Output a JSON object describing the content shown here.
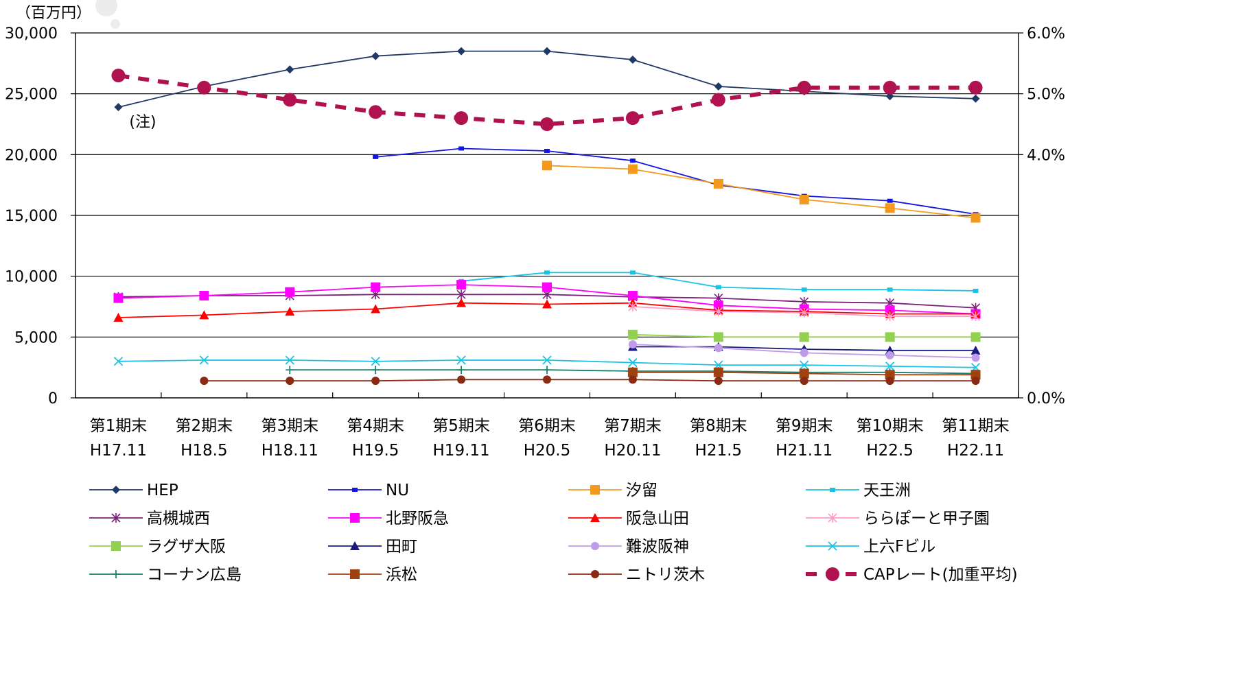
{
  "chart_data": {
    "type": "line",
    "unit_label": "（百万円）",
    "categories": [
      [
        "第1期末",
        "H17.11"
      ],
      [
        "第2期末",
        "H18.5"
      ],
      [
        "第3期末",
        "H18.11"
      ],
      [
        "第4期末",
        "H19.5"
      ],
      [
        "第5期末",
        "H19.11"
      ],
      [
        "第6期末",
        "H20.5"
      ],
      [
        "第7期末",
        "H20.11"
      ],
      [
        "第8期末",
        "H21.5"
      ],
      [
        "第9期末",
        "H21.11"
      ],
      [
        "第10期末",
        "H22.5"
      ],
      [
        "第11期末",
        "H22.11"
      ]
    ],
    "y_left": {
      "min": 0,
      "max": 30000,
      "ticks": [
        0,
        5000,
        10000,
        15000,
        20000,
        25000,
        30000
      ],
      "tick_labels": [
        "0",
        "5,000",
        "10,000",
        "15,000",
        "20,000",
        "25,000",
        "30,000"
      ]
    },
    "y_right": {
      "min": 0,
      "max": 6.0,
      "ticks": [
        0,
        4.0,
        5.0,
        6.0
      ],
      "tick_labels": [
        "0.0%",
        "4.0%",
        "5.0%",
        "6.0%"
      ]
    },
    "grid": true,
    "legend_position": "bottom",
    "annotation": "(注)",
    "series": [
      {
        "name": "HEP",
        "axis": "left",
        "color": "#1F3864",
        "marker": "diamond",
        "dashed": false,
        "values": [
          23900,
          25600,
          27000,
          28100,
          28500,
          28500,
          27800,
          25600,
          25200,
          24800,
          24600
        ]
      },
      {
        "name": "NU",
        "axis": "left",
        "color": "#1515E0",
        "marker": "smallsquare",
        "dashed": false,
        "values": [
          null,
          null,
          null,
          19800,
          20500,
          20300,
          19500,
          17500,
          16600,
          16200,
          15100
        ]
      },
      {
        "name": "汐留",
        "axis": "left",
        "color": "#F39A1E",
        "marker": "square",
        "dashed": false,
        "values": [
          null,
          null,
          null,
          null,
          null,
          19100,
          18800,
          17600,
          16300,
          15600,
          14800
        ]
      },
      {
        "name": "天王洲",
        "axis": "left",
        "color": "#19C3E6",
        "marker": "smallsquare",
        "dashed": false,
        "values": [
          null,
          null,
          null,
          null,
          9600,
          10300,
          10300,
          9100,
          8900,
          8900,
          8800
        ]
      },
      {
        "name": "高槻城西",
        "axis": "left",
        "color": "#7B1F7B",
        "marker": "star",
        "dashed": false,
        "values": [
          8300,
          8400,
          8400,
          8500,
          8500,
          8500,
          8300,
          8200,
          7900,
          7800,
          7400
        ]
      },
      {
        "name": "北野阪急",
        "axis": "left",
        "color": "#FF00FF",
        "marker": "square",
        "dashed": false,
        "values": [
          8200,
          8400,
          8700,
          9100,
          9300,
          9100,
          8400,
          7600,
          7300,
          7200,
          6900
        ]
      },
      {
        "name": "阪急山田",
        "axis": "left",
        "color": "#FF0000",
        "marker": "triangle",
        "dashed": false,
        "values": [
          6600,
          6800,
          7100,
          7300,
          7800,
          7700,
          7800,
          7200,
          7100,
          6900,
          6900
        ]
      },
      {
        "name": "ららぽーと甲子園",
        "axis": "left",
        "color": "#FF9BC8",
        "marker": "star",
        "dashed": false,
        "values": [
          null,
          null,
          null,
          null,
          null,
          null,
          7500,
          7100,
          7000,
          6700,
          6700
        ]
      },
      {
        "name": "ラグザ大阪",
        "axis": "left",
        "color": "#92D050",
        "marker": "square",
        "dashed": false,
        "values": [
          null,
          null,
          null,
          null,
          null,
          null,
          5200,
          5000,
          5000,
          5000,
          5000
        ]
      },
      {
        "name": "田町",
        "axis": "left",
        "color": "#1A1A80",
        "marker": "triangle",
        "dashed": false,
        "values": [
          null,
          null,
          null,
          null,
          null,
          null,
          4200,
          4200,
          4000,
          3900,
          3900
        ]
      },
      {
        "name": "難波阪神",
        "axis": "left",
        "color": "#C09BEA",
        "marker": "circle",
        "dashed": false,
        "values": [
          null,
          null,
          null,
          null,
          null,
          null,
          4400,
          4100,
          3700,
          3500,
          3300
        ]
      },
      {
        "name": "上六Fビル",
        "axis": "left",
        "color": "#19C3E6",
        "marker": "x",
        "dashed": false,
        "values": [
          3000,
          3100,
          3100,
          3000,
          3100,
          3100,
          2900,
          2700,
          2700,
          2600,
          2500
        ]
      },
      {
        "name": "コーナン広島",
        "axis": "left",
        "color": "#1F7F6F",
        "marker": "plus",
        "dashed": false,
        "values": [
          null,
          null,
          2300,
          2300,
          2300,
          2300,
          2200,
          2200,
          2100,
          2100,
          2000
        ]
      },
      {
        "name": "浜松",
        "axis": "left",
        "color": "#A0420F",
        "marker": "square",
        "dashed": false,
        "values": [
          null,
          null,
          null,
          null,
          null,
          null,
          2100,
          2100,
          2000,
          1900,
          1900
        ]
      },
      {
        "name": "ニトリ茨木",
        "axis": "left",
        "color": "#8B2A14",
        "marker": "circle",
        "dashed": false,
        "values": [
          null,
          1400,
          1400,
          1400,
          1500,
          1500,
          1500,
          1400,
          1400,
          1400,
          1400
        ]
      },
      {
        "name": "CAPレート(加重平均)",
        "axis": "right",
        "color": "#B0124F",
        "marker": "bigcircle",
        "dashed": true,
        "values": [
          5.3,
          5.1,
          4.9,
          4.7,
          4.6,
          4.5,
          4.6,
          4.9,
          5.1,
          5.1,
          5.1
        ]
      }
    ]
  }
}
